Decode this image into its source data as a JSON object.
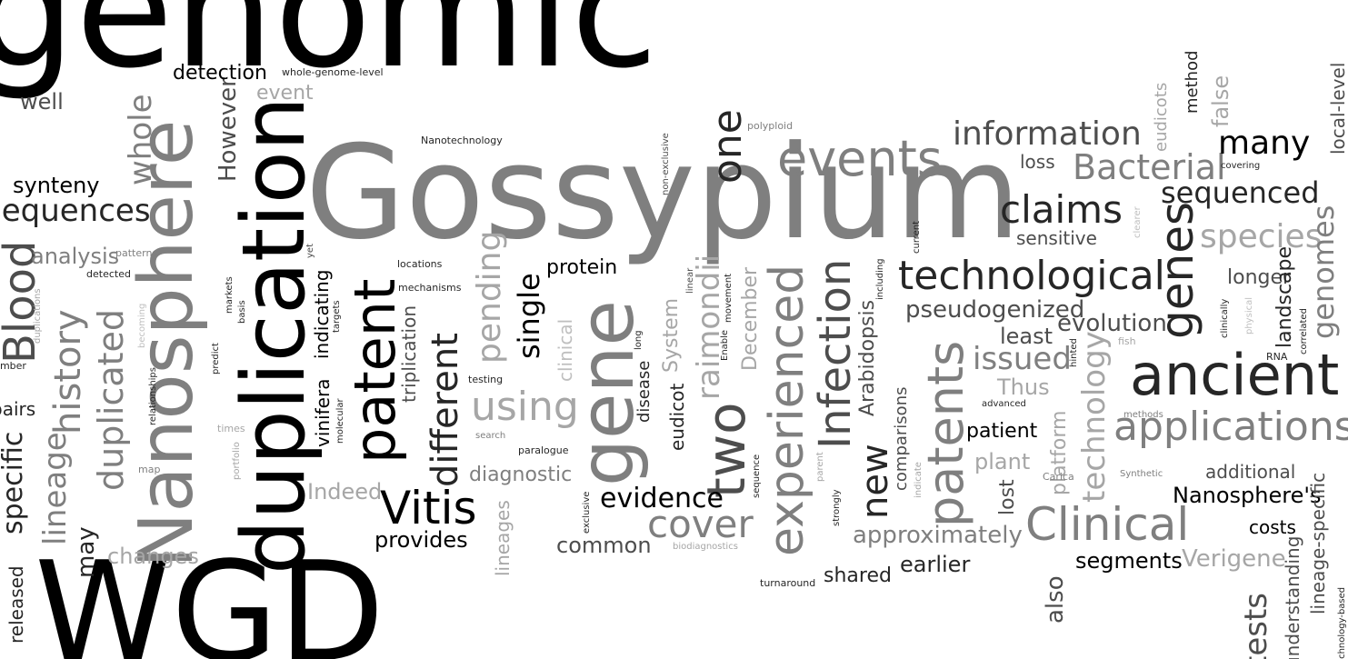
{
  "words": {
    "genomic": "genomic",
    "gossypium": "Gossypium",
    "wgd": "WGD",
    "duplication": "duplication",
    "nanosphere": "Nanosphere",
    "gene": "gene",
    "patent": "patent",
    "events": "events",
    "ancient": "ancient",
    "applications": "applications",
    "technological": "technological",
    "genes": "genes",
    "experienced": "experienced",
    "patents": "patents",
    "infection": "Infection",
    "clinical_cap": "Clinical",
    "vitis": "Vitis",
    "blood": "Blood",
    "two": "two",
    "one": "one",
    "claims": "claims",
    "information": "information",
    "bacterial": "Bacterial",
    "sequenced": "sequenced",
    "many": "many",
    "species": "species",
    "cover": "cover",
    "using": "using",
    "different": "different",
    "history": "history",
    "duplicated": "duplicated",
    "whole": "whole",
    "new": "new",
    "evidence": "evidence",
    "genomes": "genomes",
    "raimondii": "raimondii",
    "single": "single",
    "pending": "pending",
    "lineage": "lineage",
    "technology": "technology",
    "issued": "issued",
    "evolution": "evolution",
    "approximately": "approximately",
    "pseudogenized": "pseudogenized",
    "sequences": "sequences",
    "specific": "specific",
    "tests": "tests",
    "however": "However",
    "nanospheres": "Nanosphere's",
    "verigene": "Verigene",
    "segments": "segments",
    "earlier": "earlier",
    "shared": "shared",
    "common": "common",
    "provides": "provides",
    "indeed": "Indeed",
    "changes": "changes",
    "diagnostic": "diagnostic",
    "protein": "protein",
    "detection": "detection",
    "synteny": "synteny",
    "analysis": "analysis",
    "well": "well",
    "event": "event",
    "least": "least",
    "thus": "Thus",
    "plant": "plant",
    "lost": "lost",
    "patient": "patient",
    "also": "also",
    "costs": "costs",
    "additional": "additional",
    "sensitive": "sensitive",
    "loss": "loss",
    "longer": "longer",
    "landscape": "landscape",
    "understanding": "understanding",
    "lineage_specific": "lineage-specific",
    "platform": "platform",
    "comparisons": "comparisons",
    "arabidopsis": "Arabidopsis",
    "eudicot": "eudicot",
    "system": "System",
    "december": "December",
    "disease": "disease",
    "clinical_low": "clinical",
    "triplication": "triplication",
    "indicating": "indicating",
    "vinifera": "vinifera",
    "lineages": "lineages",
    "may": "may",
    "released": "released",
    "method": "method",
    "false": "false",
    "eudicots": "eudicots",
    "local_level": "local-level",
    "pairs": "pairs",
    "number": "number",
    "whole_genome_level": "whole-genome-level",
    "nanotechnology": "Nanotechnology",
    "polyploid": "polyploid",
    "covering": "covering",
    "non_exclusive": "non-exclusive",
    "locations": "locations",
    "mechanisms": "mechanisms",
    "patterns": "patterns",
    "detected": "detected",
    "duplications": "duplications",
    "becoming": "becoming",
    "markets": "markets",
    "basis": "basis",
    "targets": "targets",
    "yet": "yet",
    "predict": "predict",
    "relationships": "relationships",
    "molecular": "molecular",
    "times": "times",
    "portfolio": "portfolio",
    "map": "map",
    "testing": "testing",
    "search": "search",
    "paralogue": "paralogue",
    "long": "long",
    "linear": "linear",
    "movement": "movement",
    "enable": "Enable",
    "exclusive": "exclusive",
    "biodiagnostics": "biodiagnostics",
    "sequence": "sequence",
    "turnaround": "turnaround",
    "strongly": "strongly",
    "parent": "parent",
    "including": "including",
    "current": "current",
    "indicate": "indicate",
    "advanced": "advanced",
    "carica": "Carica",
    "synthetic": "Synthetic",
    "methods": "methods",
    "hinted": "hinted",
    "fish": "fish",
    "clearer": "clearer",
    "clinically": "clinically",
    "physical": "physical",
    "rna": "RNA",
    "correlated": "correlated",
    "technology_based": "technology-based"
  }
}
